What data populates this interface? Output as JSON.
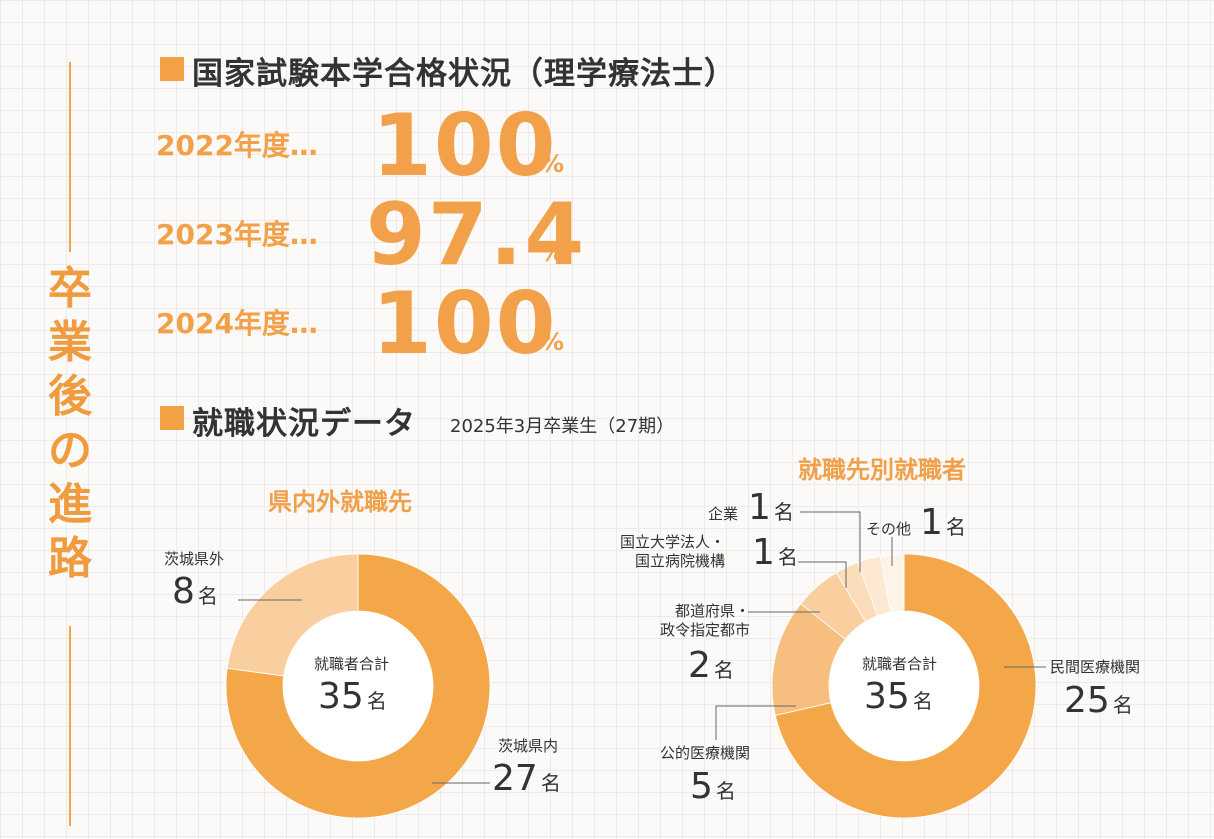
{
  "sidebar": {
    "title_chars": [
      "卒",
      "業",
      "後",
      "の",
      "進",
      "路"
    ]
  },
  "exam": {
    "title": "国家試験本学合格状況（理学療法士）",
    "rows": [
      {
        "year": "2022年度…",
        "value": "100",
        "unit": "%"
      },
      {
        "year": "2023年度…",
        "value": "97.4",
        "unit": "%"
      },
      {
        "year": "2024年度…",
        "value": "100",
        "unit": "%"
      }
    ]
  },
  "employment": {
    "title": "就職状況データ",
    "subtitle": "2025年3月卒業生（27期）"
  },
  "colors": {
    "accent": "#f2a244",
    "c1": "#f4a749",
    "c2": "#f7bf7f",
    "c3": "#f9cf9f",
    "c4": "#fbddbb",
    "c5": "#fde9d3",
    "c6": "#fef3e7"
  },
  "chart_data": [
    {
      "type": "pie",
      "variant": "donut",
      "title": "県内外就職先",
      "center_label": "就職者合計",
      "center_value": "35",
      "center_unit": "名",
      "slices": [
        {
          "label": "茨城県内",
          "value": 27,
          "value_text": "27",
          "unit": "名"
        },
        {
          "label": "茨城県外",
          "value": 8,
          "value_text": "8",
          "unit": "名"
        }
      ]
    },
    {
      "type": "pie",
      "variant": "donut",
      "title": "就職先別就職者",
      "center_label": "就職者合計",
      "center_value": "35",
      "center_unit": "名",
      "slices": [
        {
          "label": "民間医療機関",
          "value": 25,
          "value_text": "25",
          "unit": "名"
        },
        {
          "label": "公的医療機関",
          "value": 5,
          "value_text": "5",
          "unit": "名"
        },
        {
          "label": "都道府県・\n政令指定都市",
          "value": 2,
          "value_text": "2",
          "unit": "名"
        },
        {
          "label": "国立大学法人・\n国立病院機構",
          "value": 1,
          "value_text": "1",
          "unit": "名"
        },
        {
          "label": "企業",
          "value": 1,
          "value_text": "1",
          "unit": "名"
        },
        {
          "label": "その他",
          "value": 1,
          "value_text": "1",
          "unit": "名"
        }
      ]
    }
  ]
}
